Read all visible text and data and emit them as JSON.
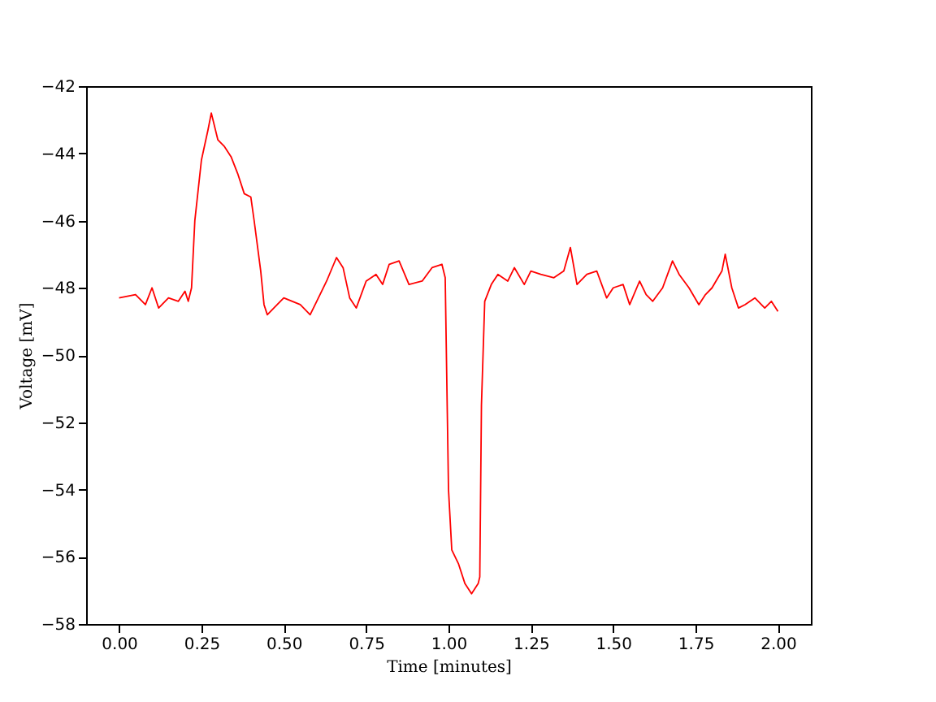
{
  "chart_data": {
    "type": "line",
    "xlabel": "Time [minutes]",
    "ylabel": "Voltage [mV]",
    "xlim": [
      -0.1,
      2.1
    ],
    "ylim": [
      -58,
      -42
    ],
    "xticks": [
      {
        "value": 0,
        "label": "0.00"
      },
      {
        "value": 0.25,
        "label": "0.25"
      },
      {
        "value": 0.5,
        "label": "0.50"
      },
      {
        "value": 0.75,
        "label": "0.75"
      },
      {
        "value": 1,
        "label": "1.00"
      },
      {
        "value": 1.25,
        "label": "1.25"
      },
      {
        "value": 1.5,
        "label": "1.50"
      },
      {
        "value": 1.75,
        "label": "1.75"
      },
      {
        "value": 2,
        "label": "2.00"
      }
    ],
    "yticks": [
      -58,
      -56,
      -54,
      -52,
      -50,
      -48,
      -46,
      -44,
      -42
    ],
    "grid": false,
    "marker": "none",
    "line_style": "solid",
    "series": [
      {
        "color": "#ff0000",
        "x": [
          0,
          0.05,
          0.08,
          0.1,
          0.12,
          0.15,
          0.18,
          0.2,
          0.21,
          0.22,
          0.23,
          0.25,
          0.27,
          0.28,
          0.3,
          0.32,
          0.34,
          0.36,
          0.38,
          0.4,
          0.41,
          0.43,
          0.44,
          0.45,
          0.48,
          0.5,
          0.55,
          0.58,
          0.6,
          0.63,
          0.66,
          0.68,
          0.7,
          0.72,
          0.75,
          0.78,
          0.8,
          0.82,
          0.85,
          0.88,
          0.92,
          0.95,
          0.98,
          0.99,
          1.0,
          1.01,
          1.03,
          1.05,
          1.07,
          1.09,
          1.095,
          1.1,
          1.11,
          1.13,
          1.15,
          1.18,
          1.2,
          1.23,
          1.25,
          1.28,
          1.32,
          1.35,
          1.37,
          1.39,
          1.42,
          1.45,
          1.48,
          1.5,
          1.53,
          1.55,
          1.58,
          1.6,
          1.62,
          1.65,
          1.68,
          1.7,
          1.73,
          1.76,
          1.78,
          1.8,
          1.83,
          1.84,
          1.86,
          1.88,
          1.9,
          1.93,
          1.96,
          1.98,
          2.0
        ],
        "values": [
          -48.3,
          -48.2,
          -48.5,
          -48.0,
          -48.6,
          -48.3,
          -48.4,
          -48.1,
          -48.4,
          -48.0,
          -46.0,
          -44.2,
          -43.3,
          -42.8,
          -43.6,
          -43.8,
          -44.1,
          -44.6,
          -45.2,
          -45.3,
          -46.0,
          -47.5,
          -48.5,
          -48.8,
          -48.5,
          -48.3,
          -48.5,
          -48.8,
          -48.4,
          -47.8,
          -47.1,
          -47.4,
          -48.3,
          -48.6,
          -47.8,
          -47.6,
          -47.9,
          -47.3,
          -47.2,
          -47.9,
          -47.8,
          -47.4,
          -47.3,
          -47.7,
          -54.0,
          -55.8,
          -56.2,
          -56.8,
          -57.1,
          -56.8,
          -56.6,
          -51.5,
          -48.4,
          -47.9,
          -47.6,
          -47.8,
          -47.4,
          -47.9,
          -47.5,
          -47.6,
          -47.7,
          -47.5,
          -46.8,
          -47.9,
          -47.6,
          -47.5,
          -48.3,
          -48.0,
          -47.9,
          -48.5,
          -47.8,
          -48.2,
          -48.4,
          -48.0,
          -47.2,
          -47.6,
          -48.0,
          -48.5,
          -48.2,
          -48.0,
          -47.5,
          -47.0,
          -48.0,
          -48.6,
          -48.5,
          -48.3,
          -48.6,
          -48.4,
          -48.7
        ]
      }
    ]
  }
}
